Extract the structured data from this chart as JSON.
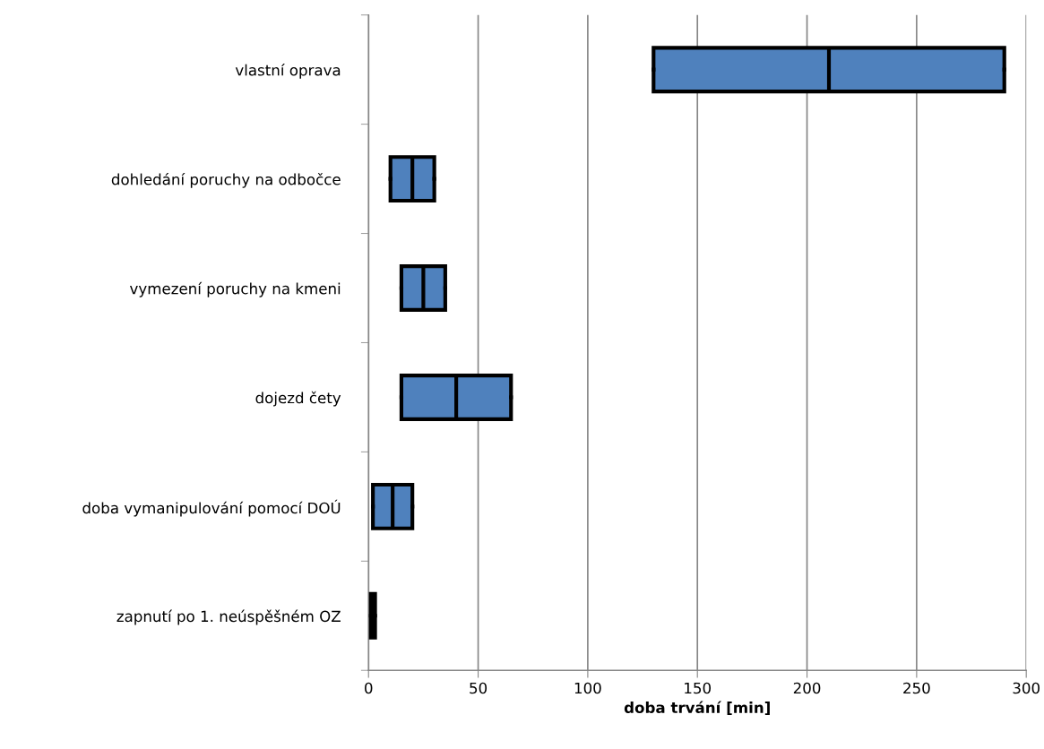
{
  "chart_data": {
    "type": "box",
    "orientation": "horizontal",
    "categories": [
      "vlastní oprava",
      "dohledání poruchy na odbočce",
      "vymezení poruchy na kmeni",
      "dojezd čety",
      "doba vymanipulování pomocí DOÚ",
      "zapnutí po 1. neúspěšném OZ"
    ],
    "boxes": [
      {
        "low": 130,
        "q1": 130,
        "median": 210,
        "q3": 290,
        "high": 290
      },
      {
        "low": 10,
        "q1": 10,
        "median": 20,
        "q3": 30,
        "high": 30
      },
      {
        "low": 15,
        "q1": 15,
        "median": 25,
        "q3": 35,
        "high": 35
      },
      {
        "low": 15,
        "q1": 15,
        "median": 40,
        "q3": 65,
        "high": 65
      },
      {
        "low": 2,
        "q1": 2,
        "median": 11,
        "q3": 20,
        "high": 20
      },
      {
        "low": 1,
        "q1": 1,
        "median": 2,
        "q3": 3,
        "high": 3
      }
    ],
    "color": "#4f81bd",
    "xlabel": "doba trvání [min]",
    "xlim": [
      0,
      300
    ],
    "xticks": [
      0,
      50,
      100,
      150,
      200,
      250,
      300
    ],
    "grid": "x"
  }
}
